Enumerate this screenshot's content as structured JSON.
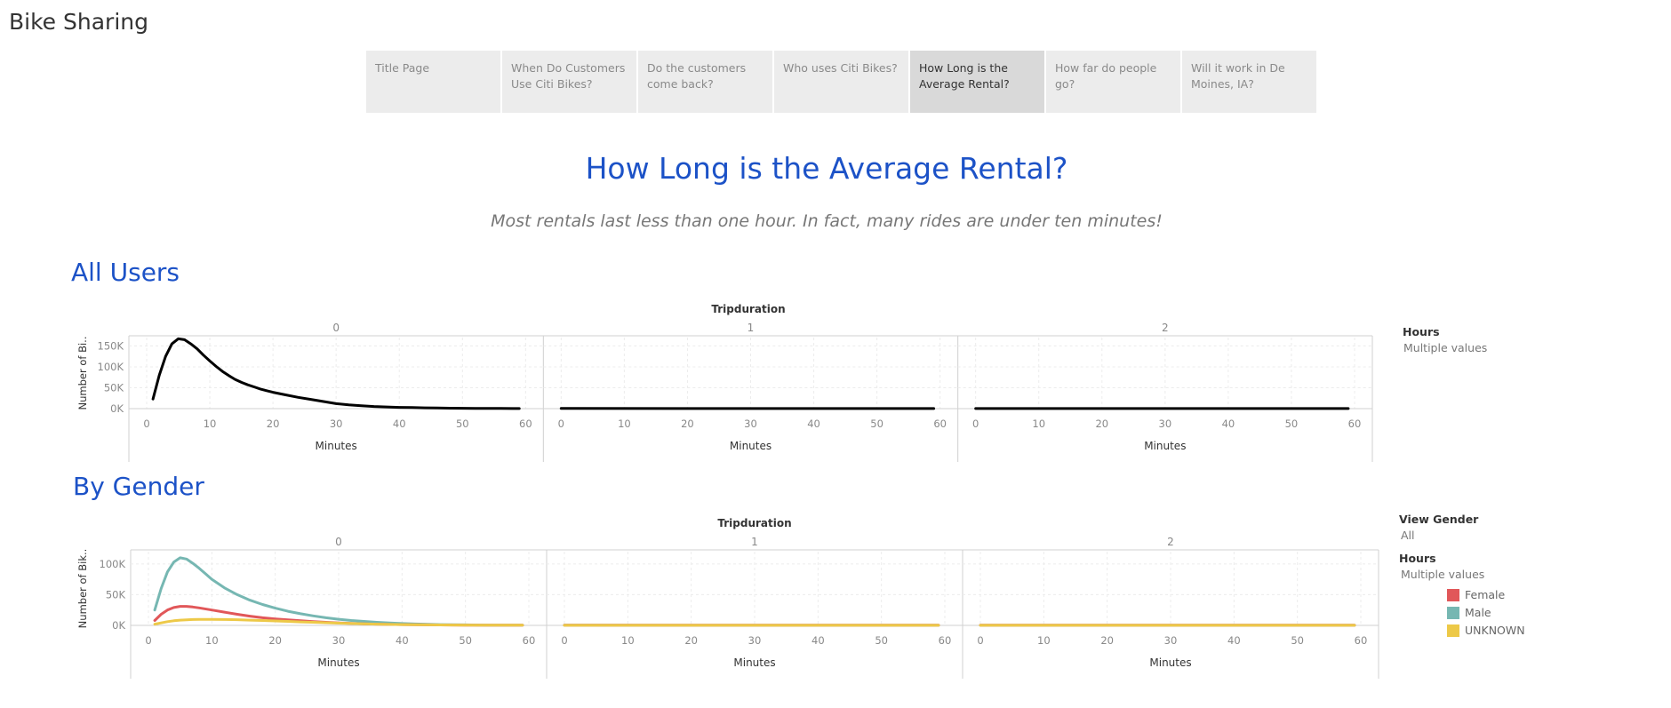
{
  "app": {
    "title": "Bike Sharing"
  },
  "tabs": [
    {
      "label": "Title Page",
      "active": false
    },
    {
      "label": "When Do Customers Use Citi Bikes?",
      "active": false
    },
    {
      "label": "Do the customers come back?",
      "active": false
    },
    {
      "label": "Who uses Citi Bikes?",
      "active": false
    },
    {
      "label": "How Long is the Average Rental?",
      "active": true
    },
    {
      "label": "How far do people go?",
      "active": false
    },
    {
      "label": "Will it work in De Moines, IA?",
      "active": false
    }
  ],
  "page": {
    "title": "How Long is the Average Rental?",
    "subtitle": "Most rentals last less than one hour.  In fact, many rides are under ten minutes!"
  },
  "sections": {
    "all_users": "All Users",
    "by_gender": "By Gender"
  },
  "filters": {
    "all_users_hours_label": "Hours",
    "all_users_hours_value": "Multiple values",
    "view_gender_label": "View Gender",
    "view_gender_value": "All",
    "gender_hours_label": "Hours",
    "gender_hours_value": "Multiple values"
  },
  "legend": [
    {
      "name": "Female",
      "color": "#e15759"
    },
    {
      "name": "Male",
      "color": "#76b7b2"
    },
    {
      "name": "UNKNOWN",
      "color": "#edc948"
    }
  ],
  "chart_data": [
    {
      "type": "line",
      "title": "All Users",
      "column_header": "Tripduration",
      "panels": [
        "0",
        "1",
        "2"
      ],
      "xlabel": "Minutes",
      "ylabel": "Number of Bi..",
      "xlim": [
        0,
        60
      ],
      "xticks": [
        "0",
        "10",
        "20",
        "30",
        "40",
        "50",
        "60"
      ],
      "ylim": [
        0,
        170000
      ],
      "yticks": [
        {
          "v": 0,
          "label": "0K"
        },
        {
          "v": 50000,
          "label": "50K"
        },
        {
          "v": 100000,
          "label": "100K"
        },
        {
          "v": 150000,
          "label": "150K"
        }
      ],
      "grid": true,
      "series": [
        {
          "color": "#000000",
          "panel_values": [
            {
              "x": [
                1,
                2,
                3,
                4,
                5,
                6,
                7,
                8,
                9,
                10,
                11,
                12,
                13,
                14,
                15,
                16,
                17,
                18,
                19,
                20,
                22,
                24,
                26,
                28,
                30,
                32,
                34,
                36,
                38,
                40,
                42,
                44,
                46,
                48,
                50,
                52,
                54,
                56,
                58,
                59
              ],
              "y": [
                23000,
                80000,
                125000,
                155000,
                167000,
                165000,
                155000,
                143000,
                128000,
                114000,
                101000,
                89000,
                79000,
                70000,
                63000,
                57000,
                52000,
                47000,
                43000,
                39000,
                33000,
                27000,
                22000,
                17000,
                12000,
                9000,
                7000,
                5000,
                4000,
                3000,
                2500,
                2000,
                1500,
                1000,
                800,
                600,
                500,
                400,
                300,
                300
              ]
            },
            {
              "x": [
                0,
                59
              ],
              "y": [
                500,
                300
              ]
            },
            {
              "x": [
                0,
                59
              ],
              "y": [
                200,
                200
              ]
            }
          ]
        }
      ]
    },
    {
      "type": "line",
      "title": "By Gender",
      "column_header": "Tripduration",
      "panels": [
        "0",
        "1",
        "2"
      ],
      "xlabel": "Minutes",
      "ylabel": "Number of Bik..",
      "xlim": [
        0,
        60
      ],
      "xticks": [
        "0",
        "10",
        "20",
        "30",
        "40",
        "50",
        "60"
      ],
      "ylim": [
        0,
        120000
      ],
      "yticks": [
        {
          "v": 0,
          "label": "0K"
        },
        {
          "v": 50000,
          "label": "50K"
        },
        {
          "v": 100000,
          "label": "100K"
        }
      ],
      "grid": true,
      "legend": "right",
      "series": [
        {
          "name": "Male",
          "color": "#76b7b2",
          "panel_values": [
            {
              "x": [
                1,
                2,
                3,
                4,
                5,
                6,
                7,
                8,
                9,
                10,
                12,
                14,
                16,
                18,
                20,
                22,
                24,
                26,
                28,
                30,
                32,
                34,
                36,
                38,
                40,
                42,
                44,
                46,
                48,
                50,
                52,
                54,
                56,
                58,
                59
              ],
              "y": [
                25000,
                60000,
                87000,
                103000,
                110000,
                108000,
                101000,
                93000,
                84000,
                75000,
                61000,
                50000,
                41000,
                34000,
                28000,
                23000,
                19000,
                15500,
                12500,
                10000,
                8000,
                6500,
                5000,
                4000,
                3000,
                2300,
                1800,
                1300,
                1000,
                800,
                600,
                500,
                400,
                300,
                300
              ]
            },
            {
              "x": [
                0,
                59
              ],
              "y": [
                300,
                200
              ]
            },
            {
              "x": [
                0,
                59
              ],
              "y": [
                200,
                200
              ]
            }
          ]
        },
        {
          "name": "Female",
          "color": "#e15759",
          "panel_values": [
            {
              "x": [
                1,
                2,
                3,
                4,
                5,
                6,
                7,
                8,
                10,
                12,
                14,
                16,
                18,
                20,
                22,
                24,
                26,
                28,
                30,
                32,
                34,
                36,
                38,
                40,
                42,
                44,
                46,
                48,
                50,
                52,
                54,
                56,
                58,
                59
              ],
              "y": [
                8000,
                18000,
                25000,
                29000,
                31000,
                31000,
                30000,
                28500,
                25000,
                21500,
                18000,
                15000,
                12500,
                10500,
                9000,
                7500,
                6000,
                5000,
                4000,
                3200,
                2600,
                2000,
                1600,
                1300,
                1000,
                800,
                700,
                600,
                500,
                400,
                400,
                300,
                300,
                300
              ]
            },
            {
              "x": [
                0,
                59
              ],
              "y": [
                300,
                300
              ]
            },
            {
              "x": [
                0,
                59
              ],
              "y": [
                300,
                300
              ]
            }
          ]
        },
        {
          "name": "UNKNOWN",
          "color": "#edc948",
          "panel_values": [
            {
              "x": [
                1,
                2,
                3,
                4,
                5,
                6,
                7,
                8,
                10,
                12,
                14,
                16,
                18,
                20,
                22,
                24,
                26,
                28,
                30,
                32,
                34,
                36,
                38,
                40,
                44,
                48,
                52,
                56,
                59
              ],
              "y": [
                2000,
                4000,
                6000,
                7500,
                8500,
                9000,
                9500,
                9700,
                9800,
                9600,
                9200,
                8600,
                8000,
                7300,
                6500,
                5700,
                5000,
                4300,
                3600,
                3000,
                2500,
                2000,
                1600,
                1300,
                900,
                600,
                400,
                300,
                300
              ]
            },
            {
              "x": [
                0,
                59
              ],
              "y": [
                100,
                100
              ]
            },
            {
              "x": [
                0,
                59
              ],
              "y": [
                100,
                100
              ]
            }
          ]
        }
      ]
    }
  ]
}
